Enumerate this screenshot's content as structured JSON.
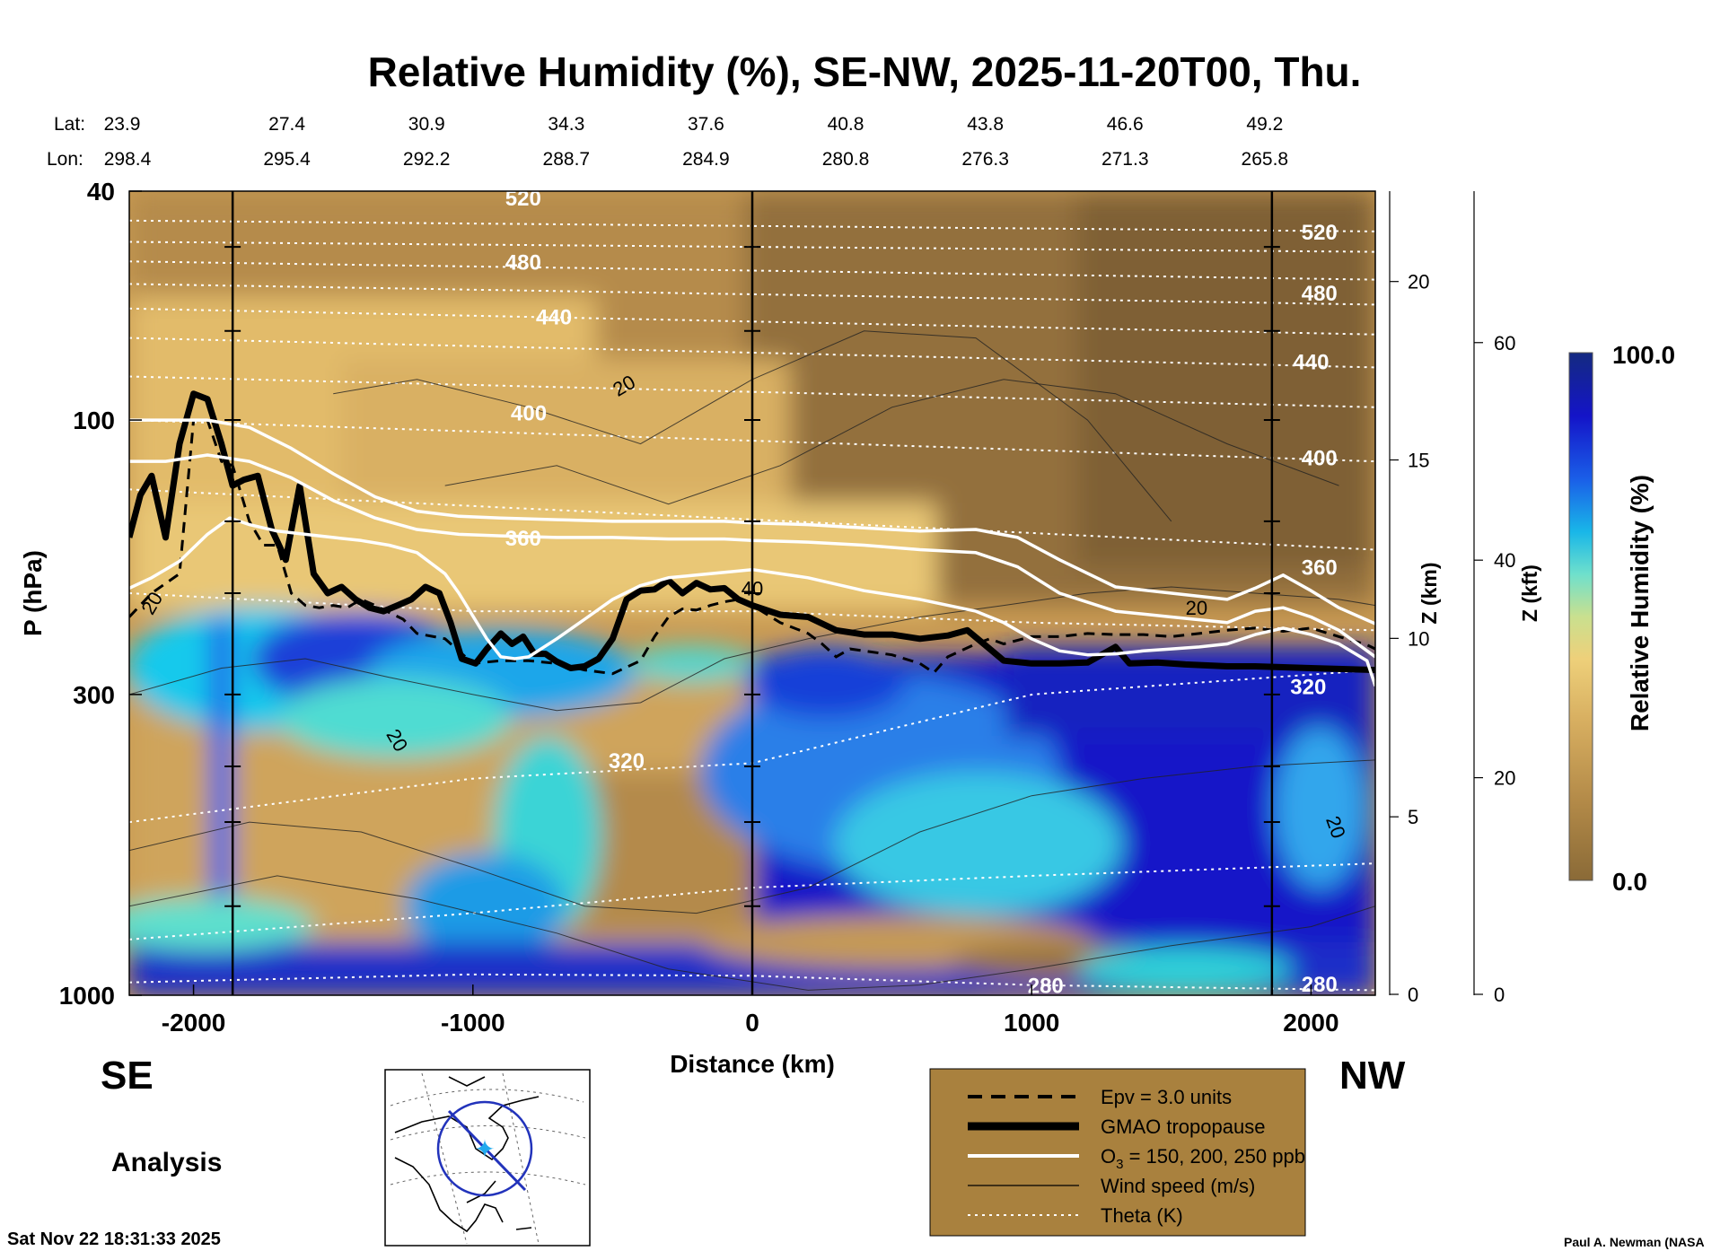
{
  "chart_data": {
    "type": "heatmap",
    "title": "Relative Humidity (%), SE-NW, 2025-11-20T00, Thu.",
    "xlabel": "Distance (km)",
    "ylabel": "P (hPa)",
    "z_km_label": "Z (km)",
    "z_kft_label": "Z (kft)",
    "colorbar_label": "Relative Humidity (%)",
    "colorbar_min": "0.0",
    "colorbar_max": "100.0",
    "xlim": [
      -2230,
      2230
    ],
    "ylim": [
      1000,
      40
    ],
    "y_scale": "log",
    "x_ticks": [
      -2000,
      -1000,
      0,
      1000,
      2000
    ],
    "x_tick_labels": [
      "-2000",
      "-1000",
      "0",
      "1000",
      "2000"
    ],
    "y_ticks": [
      40,
      100,
      300,
      1000
    ],
    "y_tick_labels": [
      "40",
      "100",
      "300",
      "1000"
    ],
    "z_km_ticks": [
      0,
      5,
      10,
      15,
      20
    ],
    "z_km_tick_labels": [
      "0",
      "5",
      "10",
      "15",
      "20"
    ],
    "z_kft_ticks": [
      0,
      20,
      40,
      60
    ],
    "z_kft_tick_labels": [
      "0",
      "20",
      "40",
      "60"
    ],
    "lat_label": "Lat:",
    "lon_label": "Lon:",
    "section_points": [
      {
        "x": -2230,
        "lat": "23.9",
        "lon": "298.4"
      },
      {
        "x": -1730,
        "lat": "27.4",
        "lon": "295.4"
      },
      {
        "x": -1230,
        "lat": "30.9",
        "lon": "292.2"
      },
      {
        "x": -730,
        "lat": "34.3",
        "lon": "288.7"
      },
      {
        "x": -230,
        "lat": "37.6",
        "lon": "284.9"
      },
      {
        "x": 270,
        "lat": "40.8",
        "lon": "280.8"
      },
      {
        "x": 770,
        "lat": "43.8",
        "lon": "276.3"
      },
      {
        "x": 1270,
        "lat": "46.6",
        "lon": "271.3"
      },
      {
        "x": 1770,
        "lat": "49.2",
        "lon": "265.8"
      }
    ],
    "vertical_markers_x": [
      -1860,
      0,
      1860
    ],
    "direction_left": "SE",
    "direction_right": "NW",
    "analysis_label": "Analysis",
    "timestamp": "Sat Nov 22 18:31:33 2025",
    "credit": "Paul A. Newman (NASA",
    "legend": {
      "placement": "bottom-center",
      "background": "#a9813e",
      "entries": [
        {
          "name": "Epv = 3.0 units",
          "style": "dashed-thick"
        },
        {
          "name": "GMAO tropopause",
          "style": "solid-heavy"
        },
        {
          "name_prefix": "O",
          "name_sub": "3",
          "name_suffix": " = 150, 200, 250 ppb",
          "style": "solid-white"
        },
        {
          "name": "Wind speed (m/s)",
          "style": "solid-thin"
        },
        {
          "name": "Theta (K)",
          "style": "dotted-white"
        }
      ]
    },
    "theta_labels": [
      {
        "value": "520",
        "x": -820,
        "p": 41
      },
      {
        "value": "480",
        "x": -820,
        "p": 53
      },
      {
        "value": "440",
        "x": -710,
        "p": 66
      },
      {
        "value": "400",
        "x": -800,
        "p": 97
      },
      {
        "value": "360",
        "x": -820,
        "p": 160
      },
      {
        "value": "320",
        "x": -450,
        "p": 390
      },
      {
        "value": "280",
        "x": 1050,
        "p": 960
      },
      {
        "value": "520",
        "x": 2030,
        "p": 47
      },
      {
        "value": "480",
        "x": 2030,
        "p": 60
      },
      {
        "value": "440",
        "x": 2000,
        "p": 79
      },
      {
        "value": "400",
        "x": 2030,
        "p": 116
      },
      {
        "value": "360",
        "x": 2030,
        "p": 180
      },
      {
        "value": "320",
        "x": 1990,
        "p": 290
      },
      {
        "value": "280",
        "x": 2030,
        "p": 955
      }
    ],
    "wind_labels": [
      {
        "value": "20",
        "x": -460,
        "p": 87,
        "rot": -30
      },
      {
        "value": "20",
        "x": -2150,
        "p": 208,
        "rot": -60
      },
      {
        "value": "40",
        "x": 0,
        "p": 196,
        "rot": 0
      },
      {
        "value": "20",
        "x": 1590,
        "p": 212,
        "rot": 0
      },
      {
        "value": "20",
        "x": -1270,
        "p": 360,
        "rot": 60
      },
      {
        "value": "20",
        "x": 2090,
        "p": 510,
        "rot": 70
      }
    ],
    "series": [
      {
        "name": "GMAO tropopause",
        "x": [
          -2230,
          -2190,
          -2150,
          -2100,
          -2050,
          -2000,
          -1950,
          -1900,
          -1860,
          -1820,
          -1770,
          -1720,
          -1670,
          -1620,
          -1570,
          -1520,
          -1470,
          -1420,
          -1370,
          -1320,
          -1270,
          -1220,
          -1170,
          -1120,
          -1080,
          -1040,
          -990,
          -950,
          -900,
          -860,
          -820,
          -780,
          -740,
          -700,
          -650,
          -600,
          -550,
          -500,
          -450,
          -400,
          -350,
          -300,
          -250,
          -200,
          -150,
          -100,
          -50,
          0,
          100,
          200,
          300,
          400,
          500,
          600,
          700,
          770,
          850,
          900,
          1000,
          1100,
          1200,
          1300,
          1350,
          1450,
          1550,
          1700,
          1800,
          2000,
          2230
        ],
        "y": [
          160,
          135,
          125,
          160,
          110,
          90,
          92,
          110,
          130,
          127,
          125,
          155,
          175,
          130,
          185,
          200,
          195,
          205,
          212,
          215,
          210,
          205,
          195,
          200,
          225,
          260,
          265,
          250,
          235,
          245,
          238,
          255,
          255,
          263,
          270,
          268,
          260,
          240,
          205,
          198,
          197,
          190,
          200,
          192,
          197,
          196,
          205,
          210,
          218,
          220,
          232,
          236,
          236,
          240,
          237,
          232,
          250,
          262,
          265,
          265,
          264,
          248,
          265,
          264,
          266,
          268,
          268,
          270,
          272
        ]
      },
      {
        "name": "Epv = 3.0 units",
        "x": [
          -2230,
          -2150,
          -2050,
          -2000,
          -1950,
          -1900,
          -1860,
          -1800,
          -1750,
          -1700,
          -1650,
          -1600,
          -1550,
          -1500,
          -1450,
          -1400,
          -1350,
          -1300,
          -1250,
          -1200,
          -1100,
          -1000,
          -900,
          -800,
          -700,
          -600,
          -500,
          -400,
          -350,
          -300,
          -250,
          -200,
          -150,
          -100,
          -50,
          0,
          100,
          200,
          250,
          300,
          350,
          400,
          500,
          600,
          650,
          700,
          800,
          850,
          900,
          1000,
          1100,
          1200,
          1300,
          1400,
          1500,
          1600,
          1700,
          1800,
          1900,
          2000,
          2100,
          2200,
          2230
        ],
        "y": [
          220,
          200,
          185,
          100,
          100,
          118,
          120,
          150,
          165,
          165,
          200,
          210,
          212,
          210,
          212,
          205,
          210,
          216,
          222,
          235,
          240,
          265,
          262,
          262,
          265,
          272,
          276,
          262,
          238,
          220,
          213,
          214,
          210,
          207,
          205,
          210,
          225,
          235,
          245,
          258,
          250,
          252,
          256,
          265,
          275,
          258,
          245,
          240,
          245,
          238,
          238,
          235,
          236,
          236,
          238,
          235,
          232,
          230,
          233,
          230,
          238,
          246,
          250
        ]
      },
      {
        "name": "O3 = 150 ppb",
        "x": [
          -2230,
          -2100,
          -1950,
          -1800,
          -1650,
          -1500,
          -1350,
          -1200,
          -1050,
          -900,
          -700,
          -500,
          -300,
          -100,
          0,
          200,
          400,
          600,
          800,
          950,
          1100,
          1300,
          1500,
          1700,
          1800,
          1900,
          2000,
          2100,
          2230
        ],
        "y": [
          100,
          100,
          100,
          103,
          112,
          124,
          136,
          144,
          147,
          148,
          149,
          150,
          150,
          150,
          151,
          152,
          154,
          156,
          155,
          160,
          175,
          195,
          200,
          205,
          196,
          186,
          198,
          212,
          226
        ]
      },
      {
        "name": "O3 = 200 ppb",
        "x": [
          -2230,
          -2100,
          -1950,
          -1800,
          -1650,
          -1500,
          -1350,
          -1200,
          -1050,
          -900,
          -700,
          -500,
          -300,
          -100,
          0,
          200,
          400,
          600,
          800,
          950,
          1100,
          1300,
          1500,
          1700,
          1800,
          1900,
          2000,
          2100,
          2230
        ],
        "y": [
          118,
          118,
          115,
          118,
          126,
          138,
          148,
          155,
          158,
          159,
          160,
          160,
          161,
          161,
          162,
          163,
          165,
          168,
          170,
          180,
          200,
          215,
          220,
          225,
          215,
          212,
          220,
          232,
          258
        ]
      },
      {
        "name": "O3 = 250 ppb",
        "x": [
          -2230,
          -2150,
          -2050,
          -1950,
          -1870,
          -1800,
          -1700,
          -1600,
          -1500,
          -1400,
          -1300,
          -1200,
          -1100,
          -1050,
          -950,
          -900,
          -850,
          -800,
          -700,
          -600,
          -500,
          -400,
          -300,
          -200,
          -100,
          0,
          200,
          400,
          600,
          800,
          900,
          1000,
          1100,
          1200,
          1300,
          1400,
          1500,
          1600,
          1700,
          1800,
          1900,
          2000,
          2100,
          2200,
          2230
        ],
        "y": [
          196,
          188,
          176,
          158,
          148,
          152,
          156,
          158,
          160,
          162,
          165,
          170,
          185,
          200,
          240,
          258,
          260,
          258,
          240,
          222,
          205,
          194,
          188,
          186,
          184,
          182,
          188,
          198,
          205,
          215,
          225,
          240,
          252,
          256,
          255,
          252,
          250,
          248,
          245,
          236,
          230,
          236,
          245,
          262,
          290
        ]
      }
    ],
    "theta_levels": [
      {
        "value": 520,
        "x": [
          -2230,
          2230
        ],
        "y": [
          45,
          47
        ]
      },
      {
        "value": 500,
        "x": [
          -2230,
          2230
        ],
        "y": [
          49,
          51
        ]
      },
      {
        "value": 480,
        "x": [
          -2230,
          2230
        ],
        "y": [
          53,
          57
        ]
      },
      {
        "value": 460,
        "x": [
          -2230,
          2230
        ],
        "y": [
          58,
          63
        ]
      },
      {
        "value": 440,
        "x": [
          -2230,
          2230
        ],
        "y": [
          64,
          71
        ]
      },
      {
        "value": 420,
        "x": [
          -2230,
          2230
        ],
        "y": [
          72,
          81
        ]
      },
      {
        "value": 400,
        "x": [
          -2230,
          2230
        ],
        "y": [
          84,
          95
        ]
      },
      {
        "value": 380,
        "x": [
          -2230,
          2230
        ],
        "y": [
          100,
          118
        ]
      },
      {
        "value": 360,
        "x": [
          -2230,
          2230
        ],
        "y": [
          132,
          168
        ]
      },
      {
        "value": 340,
        "x": [
          -2230,
          -1000,
          0,
          1000,
          2230
        ],
        "y": [
          200,
          215,
          215,
          225,
          232
        ]
      },
      {
        "value": 320,
        "x": [
          -2230,
          -1000,
          0,
          1000,
          2230
        ],
        "y": [
          500,
          420,
          395,
          300,
          272
        ]
      },
      {
        "value": 300,
        "x": [
          -2230,
          -1000,
          0,
          1000,
          2230
        ],
        "y": [
          800,
          720,
          650,
          620,
          590
        ]
      },
      {
        "value": 280,
        "x": [
          -2230,
          -1000,
          0,
          1000,
          2230
        ],
        "y": [
          950,
          920,
          925,
          960,
          980
        ]
      }
    ]
  }
}
